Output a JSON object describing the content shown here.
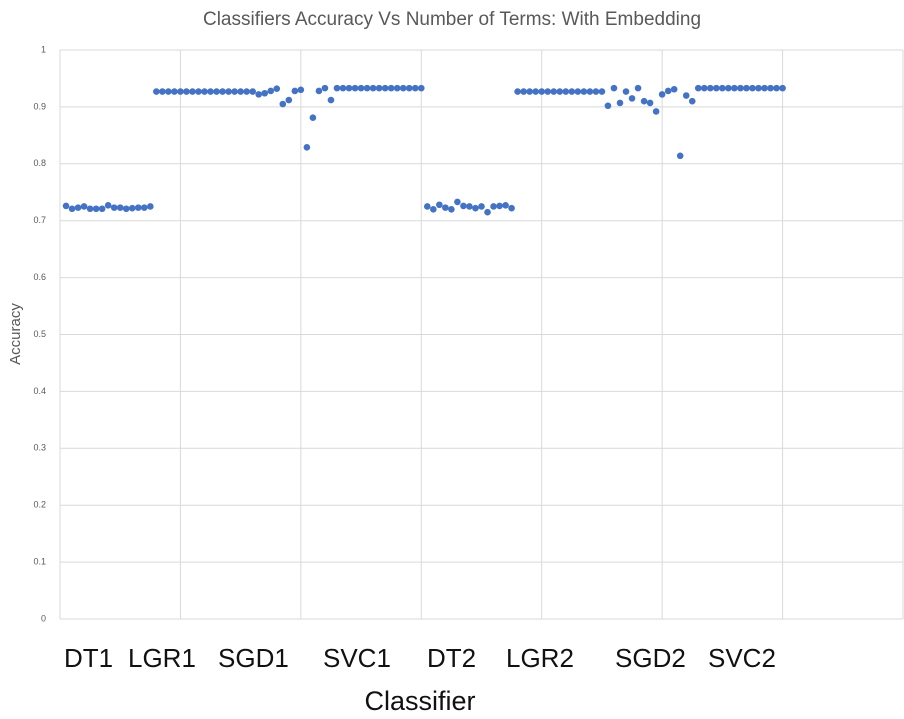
{
  "chart_data": {
    "type": "scatter",
    "title": "Classifiers Accuracy Vs Number of Terms: With Embedding",
    "ylabel": "Accuracy",
    "xlabel": "Classifier",
    "annotations": [
      "DT1",
      "LGR1",
      "SGD1",
      "SVC1",
      "DT2",
      "LGR2",
      "SGD2",
      "SVC2"
    ],
    "xlim": [
      0,
      140
    ],
    "xticks": [
      0,
      20,
      40,
      60,
      80,
      100,
      120,
      140
    ],
    "ylim": [
      0,
      1
    ],
    "yticks": [
      0,
      0.1,
      0.2,
      0.3,
      0.4,
      0.5,
      0.6,
      0.7,
      0.8,
      0.9,
      1
    ],
    "grid": true,
    "series": [
      {
        "color": "#4472c4",
        "x": [
          1,
          2,
          3,
          4,
          5,
          6,
          7,
          8,
          9,
          10,
          11,
          12,
          13,
          14,
          15,
          16,
          17,
          18,
          19,
          20,
          21,
          22,
          23,
          24,
          25,
          26,
          27,
          28,
          29,
          30,
          31,
          32,
          33,
          34,
          35,
          36,
          37,
          38,
          39,
          40,
          41,
          42,
          43,
          44,
          45,
          46,
          47,
          48,
          49,
          50,
          51,
          52,
          53,
          54,
          55,
          56,
          57,
          58,
          59,
          60,
          61,
          62,
          63,
          64,
          65,
          66,
          67,
          68,
          69,
          70,
          71,
          72,
          73,
          74,
          75,
          76,
          77,
          78,
          79,
          80,
          81,
          82,
          83,
          84,
          85,
          86,
          87,
          88,
          89,
          90,
          91,
          92,
          93,
          94,
          95,
          96,
          97,
          98,
          99,
          100,
          101,
          102,
          103,
          104,
          105,
          106,
          107,
          108,
          109,
          110,
          111,
          112,
          113,
          114,
          115,
          116,
          117,
          118,
          119,
          120
        ],
        "values": [
          0.726,
          0.721,
          0.723,
          0.725,
          0.721,
          0.721,
          0.721,
          0.727,
          0.723,
          0.723,
          0.721,
          0.722,
          0.723,
          0.723,
          0.725,
          0.927,
          0.927,
          0.927,
          0.927,
          0.927,
          0.927,
          0.927,
          0.927,
          0.927,
          0.927,
          0.927,
          0.927,
          0.927,
          0.927,
          0.927,
          0.927,
          0.927,
          0.922,
          0.924,
          0.928,
          0.932,
          0.905,
          0.912,
          0.928,
          0.93,
          0.829,
          0.881,
          0.928,
          0.933,
          0.912,
          0.933,
          0.933,
          0.933,
          0.933,
          0.933,
          0.933,
          0.933,
          0.933,
          0.933,
          0.933,
          0.933,
          0.933,
          0.933,
          0.933,
          0.933,
          0.725,
          0.72,
          0.728,
          0.723,
          0.72,
          0.733,
          0.726,
          0.725,
          0.722,
          0.725,
          0.715,
          0.725,
          0.726,
          0.727,
          0.722,
          0.927,
          0.927,
          0.927,
          0.927,
          0.927,
          0.927,
          0.927,
          0.927,
          0.927,
          0.927,
          0.927,
          0.927,
          0.927,
          0.927,
          0.927,
          0.902,
          0.933,
          0.907,
          0.927,
          0.915,
          0.933,
          0.91,
          0.907,
          0.892,
          0.922,
          0.928,
          0.931,
          0.814,
          0.92,
          0.91,
          0.933,
          0.933,
          0.933,
          0.933,
          0.933,
          0.933,
          0.933,
          0.933,
          0.933,
          0.933,
          0.933,
          0.933,
          0.933,
          0.933,
          0.933
        ]
      }
    ]
  }
}
